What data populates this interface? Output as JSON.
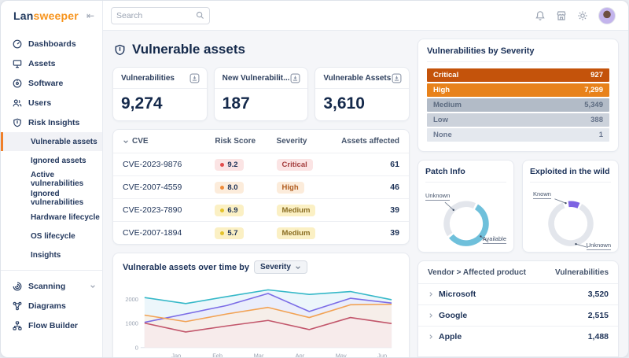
{
  "topbar": {
    "logo": {
      "part1": "Lan",
      "part2": "sweeper"
    },
    "collapse_glyph": "⇤",
    "search": {
      "placeholder": "Search"
    }
  },
  "sidebar": {
    "items": [
      {
        "label": "Dashboards",
        "icon": "dashboard-icon"
      },
      {
        "label": "Assets",
        "icon": "monitor-icon"
      },
      {
        "label": "Software",
        "icon": "disc-icon"
      },
      {
        "label": "Users",
        "icon": "users-icon"
      },
      {
        "label": "Risk Insights",
        "icon": "shield-icon"
      }
    ],
    "risk_subitems": [
      {
        "label": "Vulnerable assets",
        "active": true
      },
      {
        "label": "Ignored assets"
      },
      {
        "label": "Active vulnerabilities"
      },
      {
        "label": "Ignored vulnerabilities"
      },
      {
        "label": "Hardware lifecycle"
      },
      {
        "label": "OS lifecycle"
      },
      {
        "label": "Insights"
      }
    ],
    "bottom_items": [
      {
        "label": "Scanning",
        "icon": "radar-icon",
        "has_chevron": true
      },
      {
        "label": "Diagrams",
        "icon": "diagram-icon"
      },
      {
        "label": "Flow Builder",
        "icon": "flow-icon"
      }
    ]
  },
  "page": {
    "title": "Vulnerable assets"
  },
  "stats": [
    {
      "label": "Vulnerabilities",
      "value": "9,274"
    },
    {
      "label": "New Vulnerabilit...",
      "value": "187"
    },
    {
      "label": "Vulnerable Assets",
      "value": "3,610"
    }
  ],
  "cve_table": {
    "headers": {
      "cve": "CVE",
      "risk_score": "Risk Score",
      "severity": "Severity",
      "assets": "Assets affected"
    },
    "rows": [
      {
        "cve": "CVE-2023-9876",
        "score": "9.2",
        "severity": "Critical",
        "assets": "61",
        "level": "critical"
      },
      {
        "cve": "CVE-2007-4559",
        "score": "8.0",
        "severity": "High",
        "assets": "46",
        "level": "high"
      },
      {
        "cve": "CVE-2023-7890",
        "score": "6.9",
        "severity": "Medium",
        "assets": "39",
        "level": "medium"
      },
      {
        "cve": "CVE-2007-1894",
        "score": "5.7",
        "severity": "Medium",
        "assets": "39",
        "level": "medium"
      }
    ]
  },
  "chart_data": {
    "type": "line",
    "title": "Vulnerable assets over time by",
    "group_by_selected": "Severity",
    "x": [
      "",
      "Jan",
      "Feb",
      "Mar",
      "Apr",
      "May",
      "Jun"
    ],
    "yticks": [
      0,
      1000,
      2000
    ],
    "ylim": [
      0,
      2600
    ],
    "grid": false,
    "legend": "none",
    "series": [
      {
        "name": "series-teal",
        "color": "#35b8c8",
        "fill": "#dff0f8",
        "values": [
          2080,
          1830,
          2120,
          2400,
          2210,
          2330,
          1990
        ]
      },
      {
        "name": "series-purple",
        "color": "#7b6ce6",
        "fill": "#eae7fb",
        "values": [
          1050,
          1400,
          1750,
          2250,
          1500,
          2050,
          1850
        ]
      },
      {
        "name": "series-orange",
        "color": "#f2a254",
        "fill": "#fdeedd",
        "values": [
          1350,
          1080,
          1400,
          1670,
          1250,
          1780,
          1800
        ]
      },
      {
        "name": "series-red",
        "color": "#c2566b",
        "fill": "#f9e9ec",
        "values": [
          1020,
          650,
          900,
          1130,
          750,
          1250,
          1000
        ]
      }
    ]
  },
  "severity_panel": {
    "title": "Vulnerabilities by Severity",
    "colors": {
      "critical": "#c4530b",
      "high": "#e8821b",
      "medium": "#b2bbc7",
      "low": "#ccd2db",
      "none": "#e4e8ee"
    },
    "bars": [
      {
        "label": "Critical",
        "value": "927",
        "level": "critical"
      },
      {
        "label": "High",
        "value": "7,299",
        "level": "high"
      },
      {
        "label": "Medium",
        "value": "5,349",
        "level": "medium"
      },
      {
        "label": "Low",
        "value": "388",
        "level": "low"
      },
      {
        "label": "None",
        "value": "1",
        "level": "none"
      }
    ]
  },
  "patch_info": {
    "title": "Patch Info",
    "labels": {
      "top_left": "Unknown",
      "bottom_right": "Available"
    },
    "segments": [
      {
        "name": "Unknown",
        "pct": 41,
        "rotate": 148,
        "color": "#e3e6ec"
      },
      {
        "name": "Available",
        "pct": 55,
        "rotate": -57,
        "color": "#6fc0db"
      }
    ]
  },
  "exploited": {
    "title": "Exploited in the wild",
    "labels": {
      "top_left": "Known",
      "bottom_right": "Unknown"
    },
    "segments": [
      {
        "name": "Unknown",
        "pct": 86,
        "rotate": -59,
        "color": "#e3e6ec"
      },
      {
        "name": "Known",
        "pct": 8,
        "rotate": -95,
        "color": "#7d63e2"
      }
    ]
  },
  "vendor_table": {
    "headers": {
      "vendor": "Vendor > Affected product",
      "vulns": "Vulnerabilities"
    },
    "rows": [
      {
        "name": "Microsoft",
        "value": "3,520"
      },
      {
        "name": "Google",
        "value": "2,515"
      },
      {
        "name": "Apple",
        "value": "1,488"
      }
    ]
  }
}
